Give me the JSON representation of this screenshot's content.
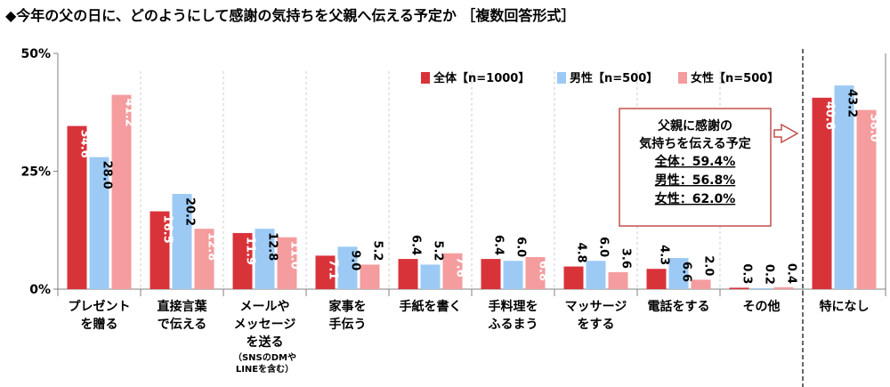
{
  "title": "◆今年の父の日に、どのようにして感謝の気持ちを父親へ伝える予定か ［複数回答形式］",
  "colors": {
    "total": "#d9333a",
    "male": "#9ccaf5",
    "female": "#f49c9e",
    "axis": "#808080"
  },
  "chart_data": {
    "type": "bar",
    "title": "◆今年の父の日に、どのようにして感謝の気持ちを父親へ伝える予定か ［複数回答形式］",
    "ylim": [
      0,
      50
    ],
    "yticks": [
      "0%",
      "25%",
      "50%"
    ],
    "ytick_values": [
      0,
      25,
      50
    ],
    "grid": false,
    "legend_position": "top-right",
    "categories": [
      {
        "lines": [
          "プレゼント",
          "を贈る"
        ],
        "note": []
      },
      {
        "lines": [
          "直接言葉",
          "で伝える"
        ],
        "note": []
      },
      {
        "lines": [
          "メールや",
          "メッセージ",
          "を送る"
        ],
        "note": [
          "（SNSのDMや",
          "LINEを含む）"
        ]
      },
      {
        "lines": [
          "家事を",
          "手伝う"
        ],
        "note": []
      },
      {
        "lines": [
          "手紙を書く"
        ],
        "note": []
      },
      {
        "lines": [
          "手料理を",
          "ふるまう"
        ],
        "note": []
      },
      {
        "lines": [
          "マッサージ",
          "をする"
        ],
        "note": []
      },
      {
        "lines": [
          "電話をする"
        ],
        "note": []
      },
      {
        "lines": [
          "その他"
        ],
        "note": []
      },
      {
        "lines": [
          "特になし"
        ],
        "note": []
      }
    ],
    "series": [
      {
        "name": "全体【n=1000】",
        "values": [
          34.6,
          16.5,
          11.9,
          7.1,
          6.4,
          6.4,
          4.8,
          4.3,
          0.3,
          40.6
        ]
      },
      {
        "name": "男性【n=500】",
        "values": [
          28.0,
          20.2,
          12.8,
          9.0,
          5.2,
          6.0,
          6.0,
          6.6,
          0.2,
          43.2
        ]
      },
      {
        "name": "女性【n=500】",
        "values": [
          41.2,
          12.8,
          11.0,
          5.2,
          7.6,
          6.8,
          3.6,
          2.0,
          0.4,
          38.0
        ]
      }
    ],
    "annotation": {
      "lines": [
        "父親に感謝の",
        "気持ちを伝える予定"
      ],
      "stats": [
        "全体：59.4%",
        "男性：56.8%",
        "女性：62.0%"
      ]
    }
  }
}
